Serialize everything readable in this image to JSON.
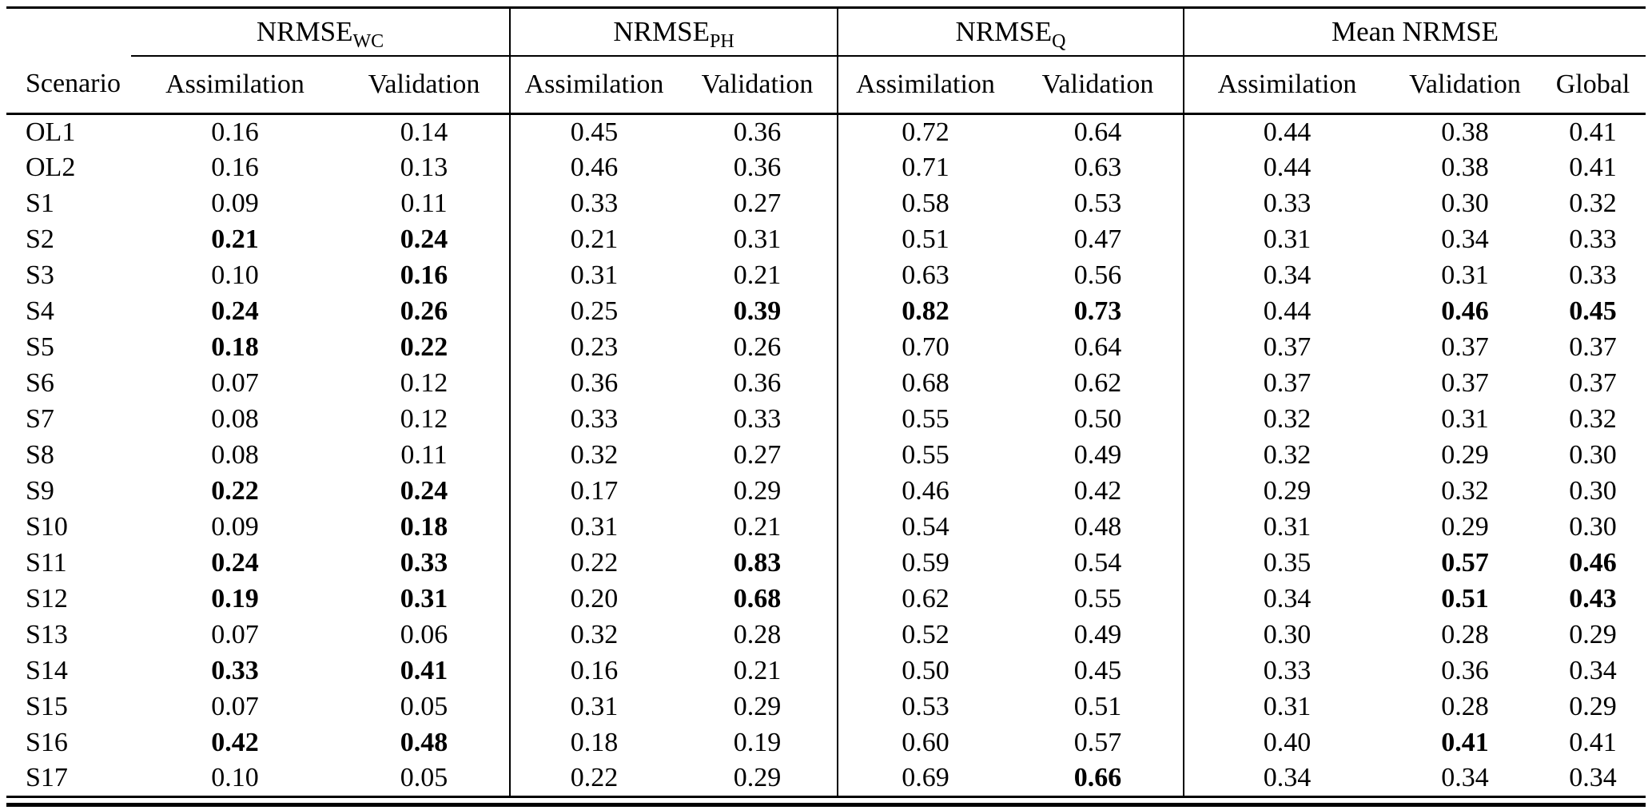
{
  "table": {
    "scenario_header": "Scenario",
    "groups": [
      {
        "name": "NRMSE",
        "sub": "WC"
      },
      {
        "name": "NRMSE",
        "sub": "PH"
      },
      {
        "name": "NRMSE",
        "sub": "Q"
      },
      {
        "name": "Mean NRMSE",
        "sub": ""
      }
    ],
    "sub_headers": [
      "Assimilation",
      "Validation",
      "Assimilation",
      "Validation",
      "Assimilation",
      "Validation",
      "Assimilation",
      "Validation",
      "Global"
    ],
    "colors": {
      "text": "#000000",
      "background": "#ffffff",
      "rule": "#000000"
    },
    "rows": [
      {
        "scenario": "OL1",
        "values": [
          "0.16",
          "0.14",
          "0.45",
          "0.36",
          "0.72",
          "0.64",
          "0.44",
          "0.38",
          "0.41"
        ],
        "bold": [
          false,
          false,
          false,
          false,
          false,
          false,
          false,
          false,
          false
        ]
      },
      {
        "scenario": "OL2",
        "values": [
          "0.16",
          "0.13",
          "0.46",
          "0.36",
          "0.71",
          "0.63",
          "0.44",
          "0.38",
          "0.41"
        ],
        "bold": [
          false,
          false,
          false,
          false,
          false,
          false,
          false,
          false,
          false
        ]
      },
      {
        "scenario": "S1",
        "values": [
          "0.09",
          "0.11",
          "0.33",
          "0.27",
          "0.58",
          "0.53",
          "0.33",
          "0.30",
          "0.32"
        ],
        "bold": [
          false,
          false,
          false,
          false,
          false,
          false,
          false,
          false,
          false
        ]
      },
      {
        "scenario": "S2",
        "values": [
          "0.21",
          "0.24",
          "0.21",
          "0.31",
          "0.51",
          "0.47",
          "0.31",
          "0.34",
          "0.33"
        ],
        "bold": [
          true,
          true,
          false,
          false,
          false,
          false,
          false,
          false,
          false
        ]
      },
      {
        "scenario": "S3",
        "values": [
          "0.10",
          "0.16",
          "0.31",
          "0.21",
          "0.63",
          "0.56",
          "0.34",
          "0.31",
          "0.33"
        ],
        "bold": [
          false,
          true,
          false,
          false,
          false,
          false,
          false,
          false,
          false
        ]
      },
      {
        "scenario": "S4",
        "values": [
          "0.24",
          "0.26",
          "0.25",
          "0.39",
          "0.82",
          "0.73",
          "0.44",
          "0.46",
          "0.45"
        ],
        "bold": [
          true,
          true,
          false,
          true,
          true,
          true,
          false,
          true,
          true
        ]
      },
      {
        "scenario": "S5",
        "values": [
          "0.18",
          "0.22",
          "0.23",
          "0.26",
          "0.70",
          "0.64",
          "0.37",
          "0.37",
          "0.37"
        ],
        "bold": [
          true,
          true,
          false,
          false,
          false,
          false,
          false,
          false,
          false
        ]
      },
      {
        "scenario": "S6",
        "values": [
          "0.07",
          "0.12",
          "0.36",
          "0.36",
          "0.68",
          "0.62",
          "0.37",
          "0.37",
          "0.37"
        ],
        "bold": [
          false,
          false,
          false,
          false,
          false,
          false,
          false,
          false,
          false
        ]
      },
      {
        "scenario": "S7",
        "values": [
          "0.08",
          "0.12",
          "0.33",
          "0.33",
          "0.55",
          "0.50",
          "0.32",
          "0.31",
          "0.32"
        ],
        "bold": [
          false,
          false,
          false,
          false,
          false,
          false,
          false,
          false,
          false
        ]
      },
      {
        "scenario": "S8",
        "values": [
          "0.08",
          "0.11",
          "0.32",
          "0.27",
          "0.55",
          "0.49",
          "0.32",
          "0.29",
          "0.30"
        ],
        "bold": [
          false,
          false,
          false,
          false,
          false,
          false,
          false,
          false,
          false
        ]
      },
      {
        "scenario": "S9",
        "values": [
          "0.22",
          "0.24",
          "0.17",
          "0.29",
          "0.46",
          "0.42",
          "0.29",
          "0.32",
          "0.30"
        ],
        "bold": [
          true,
          true,
          false,
          false,
          false,
          false,
          false,
          false,
          false
        ]
      },
      {
        "scenario": "S10",
        "values": [
          "0.09",
          "0.18",
          "0.31",
          "0.21",
          "0.54",
          "0.48",
          "0.31",
          "0.29",
          "0.30"
        ],
        "bold": [
          false,
          true,
          false,
          false,
          false,
          false,
          false,
          false,
          false
        ]
      },
      {
        "scenario": "S11",
        "values": [
          "0.24",
          "0.33",
          "0.22",
          "0.83",
          "0.59",
          "0.54",
          "0.35",
          "0.57",
          "0.46"
        ],
        "bold": [
          true,
          true,
          false,
          true,
          false,
          false,
          false,
          true,
          true
        ]
      },
      {
        "scenario": "S12",
        "values": [
          "0.19",
          "0.31",
          "0.20",
          "0.68",
          "0.62",
          "0.55",
          "0.34",
          "0.51",
          "0.43"
        ],
        "bold": [
          true,
          true,
          false,
          true,
          false,
          false,
          false,
          true,
          true
        ]
      },
      {
        "scenario": "S13",
        "values": [
          "0.07",
          "0.06",
          "0.32",
          "0.28",
          "0.52",
          "0.49",
          "0.30",
          "0.28",
          "0.29"
        ],
        "bold": [
          false,
          false,
          false,
          false,
          false,
          false,
          false,
          false,
          false
        ]
      },
      {
        "scenario": "S14",
        "values": [
          "0.33",
          "0.41",
          "0.16",
          "0.21",
          "0.50",
          "0.45",
          "0.33",
          "0.36",
          "0.34"
        ],
        "bold": [
          true,
          true,
          false,
          false,
          false,
          false,
          false,
          false,
          false
        ]
      },
      {
        "scenario": "S15",
        "values": [
          "0.07",
          "0.05",
          "0.31",
          "0.29",
          "0.53",
          "0.51",
          "0.31",
          "0.28",
          "0.29"
        ],
        "bold": [
          false,
          false,
          false,
          false,
          false,
          false,
          false,
          false,
          false
        ]
      },
      {
        "scenario": "S16",
        "values": [
          "0.42",
          "0.48",
          "0.18",
          "0.19",
          "0.60",
          "0.57",
          "0.40",
          "0.41",
          "0.41"
        ],
        "bold": [
          true,
          true,
          false,
          false,
          false,
          false,
          false,
          true,
          false
        ]
      },
      {
        "scenario": "S17",
        "values": [
          "0.10",
          "0.05",
          "0.22",
          "0.29",
          "0.69",
          "0.66",
          "0.34",
          "0.34",
          "0.34"
        ],
        "bold": [
          false,
          false,
          false,
          false,
          false,
          true,
          false,
          false,
          false
        ]
      }
    ]
  }
}
